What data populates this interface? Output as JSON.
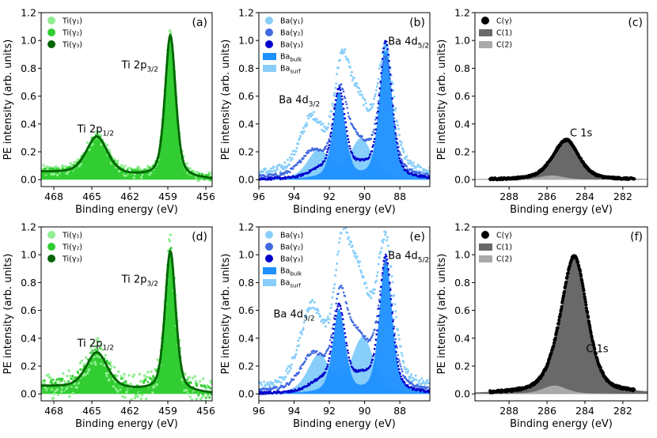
{
  "chart_data": [
    {
      "panel": "(a)",
      "type": "scatter",
      "xlabel": "Binding energy (eV)",
      "ylabel": "PE intensity (arb. units)",
      "xlim": [
        469,
        455.5
      ],
      "ylim": [
        -0.05,
        1.2
      ],
      "xticks": [
        468,
        465,
        462,
        459,
        456
      ],
      "xtick_labels": [
        "468",
        "465",
        "462",
        "459",
        "456"
      ],
      "yticks": [
        0.0,
        0.2,
        0.4,
        0.6,
        0.8,
        1.0,
        1.2
      ],
      "ytick_labels": [
        "0.0",
        "0.2",
        "0.4",
        "0.6",
        "0.8",
        "1.0",
        "1.2"
      ],
      "model": "ti",
      "noise": 0.025,
      "legend": [
        {
          "label": "Ti(γ₁)",
          "color": "#90ee90",
          "kind": "marker"
        },
        {
          "label": "Ti(γ₂)",
          "color": "#32cd32",
          "kind": "marker"
        },
        {
          "label": "Ti(γ₃)",
          "color": "#006400",
          "kind": "marker"
        }
      ],
      "annotations": [
        {
          "text": "Ti 2p",
          "sub": "3/2",
          "x": 461.2,
          "y": 0.8
        },
        {
          "text": "Ti 2p",
          "sub": "1/2",
          "x": 464.7,
          "y": 0.34
        }
      ],
      "peaks": [
        {
          "name": "Ti 2p3/2",
          "center": 458.8,
          "height": 1.02,
          "fwhm": 1.0
        },
        {
          "name": "Ti 2p1/2",
          "center": 464.6,
          "height": 0.27,
          "fwhm": 2.0
        }
      ]
    },
    {
      "panel": "(b)",
      "type": "scatter",
      "xlabel": "Binding energy (eV)",
      "ylabel": "PE intensity (arb. units)",
      "xlim": [
        96,
        86.3
      ],
      "ylim": [
        -0.05,
        1.2
      ],
      "xticks": [
        96,
        94,
        92,
        90,
        88
      ],
      "xtick_labels": [
        "96",
        "94",
        "92",
        "90",
        "88"
      ],
      "yticks": [
        0.0,
        0.2,
        0.4,
        0.6,
        0.8,
        1.0,
        1.2
      ],
      "ytick_labels": [
        "0.0",
        "0.2",
        "0.4",
        "0.6",
        "0.8",
        "1.0",
        "1.2"
      ],
      "model": "ba",
      "variant": 0,
      "legend": [
        {
          "label": "Ba(γ₁)",
          "color": "#87cefa",
          "kind": "marker"
        },
        {
          "label": "Ba(γ₂)",
          "color": "#4169e1",
          "kind": "marker"
        },
        {
          "label": "Ba(γ₃)",
          "color": "#0000cd",
          "kind": "marker"
        },
        {
          "label": "Ba",
          "sub": "bulk",
          "color": "#1e90ff",
          "kind": "patch"
        },
        {
          "label": "Ba",
          "sub": "surf",
          "color": "#87cefa",
          "kind": "patch"
        }
      ],
      "annotations": [
        {
          "text": "Ba 4d",
          "sub": "5/2",
          "x": 87.5,
          "y": 0.97
        },
        {
          "text": "Ba 4d",
          "sub": "3/2",
          "x": 93.7,
          "y": 0.55
        }
      ],
      "components": {
        "bulk_5_2": {
          "center": 88.8,
          "height": 0.98
        },
        "bulk_3_2": {
          "center": 91.45,
          "height": 0.62
        },
        "surf_5_2": {
          "center": 90.2,
          "height": 0.29
        },
        "surf_3_2": {
          "center": 92.6,
          "height": 0.21
        }
      }
    },
    {
      "panel": "(c)",
      "type": "area",
      "xlabel": "Binding energy (eV)",
      "ylabel": "PE intensity (arb. units)",
      "xlim": [
        289.8,
        280.7
      ],
      "ylim": [
        -0.05,
        1.2
      ],
      "xticks": [
        288,
        286,
        284,
        282
      ],
      "xtick_labels": [
        "288",
        "286",
        "284",
        "282"
      ],
      "yticks": [
        0.0,
        0.2,
        0.4,
        0.6,
        0.8,
        1.0,
        1.2
      ],
      "ytick_labels": [
        "0.0",
        "0.2",
        "0.4",
        "0.6",
        "0.8",
        "1.0",
        "1.2"
      ],
      "model": "c",
      "noise": 0.006,
      "legend": [
        {
          "label": "C(γ)",
          "color": "#000000",
          "kind": "marker"
        },
        {
          "label": "C(1)",
          "color": "#696969",
          "kind": "patch"
        },
        {
          "label": "C(2)",
          "color": "#a9a9a9",
          "kind": "patch"
        }
      ],
      "annotations": [
        {
          "text": "C 1s",
          "x": 284.2,
          "y": 0.31
        }
      ],
      "components": {
        "C(1)": {
          "center": 284.95,
          "height": 0.27,
          "fwhm": 1.55
        },
        "C(2)": {
          "center": 285.75,
          "height": 0.03,
          "fwhm": 1.5
        }
      }
    },
    {
      "panel": "(d)",
      "type": "scatter",
      "xlabel": "Binding energy (eV)",
      "ylabel": "PE intensity (arb. units)",
      "xlim": [
        469,
        455.5
      ],
      "ylim": [
        -0.05,
        1.2
      ],
      "xticks": [
        468,
        465,
        462,
        459,
        456
      ],
      "xtick_labels": [
        "468",
        "465",
        "462",
        "459",
        "456"
      ],
      "yticks": [
        0.0,
        0.2,
        0.4,
        0.6,
        0.8,
        1.0,
        1.2
      ],
      "ytick_labels": [
        "0.0",
        "0.2",
        "0.4",
        "0.6",
        "0.8",
        "1.0",
        "1.2"
      ],
      "model": "ti",
      "noise": 0.06,
      "legend": [
        {
          "label": "Ti(γ₁)",
          "color": "#90ee90",
          "kind": "marker"
        },
        {
          "label": "Ti(γ₂)",
          "color": "#32cd32",
          "kind": "marker"
        },
        {
          "label": "Ti(γ₃)",
          "color": "#006400",
          "kind": "marker"
        }
      ],
      "annotations": [
        {
          "text": "Ti 2p",
          "sub": "3/2",
          "x": 461.2,
          "y": 0.8
        },
        {
          "text": "Ti 2p",
          "sub": "1/2",
          "x": 464.7,
          "y": 0.34
        }
      ],
      "peaks": [
        {
          "name": "Ti 2p3/2",
          "center": 458.8,
          "height": 1.01,
          "fwhm": 1.0
        },
        {
          "name": "Ti 2p1/2",
          "center": 464.6,
          "height": 0.26,
          "fwhm": 2.0
        }
      ]
    },
    {
      "panel": "(e)",
      "type": "scatter",
      "xlabel": "Binding energy (eV)",
      "ylabel": "PE intensity (arb. units)",
      "xlim": [
        96,
        86.3
      ],
      "ylim": [
        -0.05,
        1.2
      ],
      "xticks": [
        96,
        94,
        92,
        90,
        88
      ],
      "xtick_labels": [
        "96",
        "94",
        "92",
        "90",
        "88"
      ],
      "yticks": [
        0.0,
        0.2,
        0.4,
        0.6,
        0.8,
        1.0,
        1.2
      ],
      "ytick_labels": [
        "0.0",
        "0.2",
        "0.4",
        "0.6",
        "0.8",
        "1.0",
        "1.2"
      ],
      "model": "ba",
      "variant": 1,
      "legend": [
        {
          "label": "Ba(γ₁)",
          "color": "#87cefa",
          "kind": "marker"
        },
        {
          "label": "Ba(γ₂)",
          "color": "#4169e1",
          "kind": "marker"
        },
        {
          "label": "Ba(γ₃)",
          "color": "#0000cd",
          "kind": "marker"
        },
        {
          "label": "Ba",
          "sub": "bulk",
          "color": "#1e90ff",
          "kind": "patch"
        },
        {
          "label": "Ba",
          "sub": "surf",
          "color": "#87cefa",
          "kind": "patch"
        }
      ],
      "annotations": [
        {
          "text": "Ba 4d",
          "sub": "5/2",
          "x": 87.5,
          "y": 0.97
        },
        {
          "text": "Ba 4d",
          "sub": "3/2",
          "x": 94.0,
          "y": 0.55
        }
      ],
      "components": {
        "bulk_5_2": {
          "center": 88.8,
          "height": 0.97
        },
        "bulk_3_2": {
          "center": 91.45,
          "height": 0.6
        },
        "surf_5_2": {
          "center": 90.1,
          "height": 0.4
        },
        "surf_3_2": {
          "center": 92.6,
          "height": 0.27
        }
      }
    },
    {
      "panel": "(f)",
      "type": "area",
      "xlabel": "Binding energy (eV)",
      "ylabel": "PE intensity (arb. units)",
      "xlim": [
        289.8,
        280.7
      ],
      "ylim": [
        -0.05,
        1.2
      ],
      "xticks": [
        288,
        286,
        284,
        282
      ],
      "xtick_labels": [
        "288",
        "286",
        "284",
        "282"
      ],
      "yticks": [
        0.0,
        0.2,
        0.4,
        0.6,
        0.8,
        1.0,
        1.2
      ],
      "ytick_labels": [
        "0.0",
        "0.2",
        "0.4",
        "0.6",
        "0.8",
        "1.0",
        "1.2"
      ],
      "model": "c",
      "noise": 0.008,
      "legend": [
        {
          "label": "C(γ)",
          "color": "#000000",
          "kind": "marker"
        },
        {
          "label": "C(1)",
          "color": "#696969",
          "kind": "patch"
        },
        {
          "label": "C(2)",
          "color": "#a9a9a9",
          "kind": "patch"
        }
      ],
      "annotations": [
        {
          "text": "C 1s",
          "x": 283.35,
          "y": 0.3
        }
      ],
      "components": {
        "C(1)": {
          "center": 284.55,
          "height": 0.97,
          "fwhm": 1.6
        },
        "C(2)": {
          "center": 285.6,
          "height": 0.06,
          "fwhm": 1.5
        }
      }
    }
  ]
}
